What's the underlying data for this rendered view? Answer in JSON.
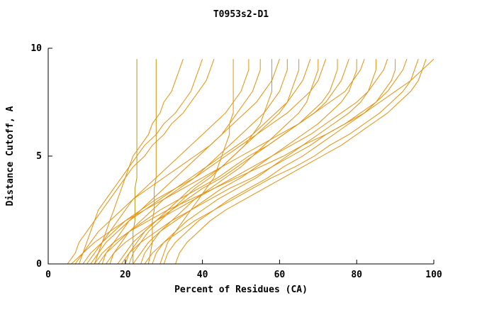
{
  "chart_data": {
    "type": "line",
    "title": "T0953s2-D1",
    "xlabel": "Percent of Residues (CA)",
    "ylabel": "Distance Cutoff, A",
    "xlim": [
      0,
      100
    ],
    "ylim": [
      0,
      10
    ],
    "xticks": [
      0,
      20,
      40,
      60,
      80,
      100
    ],
    "yticks": [
      0,
      5,
      10
    ],
    "grid": false,
    "legend_position": "none",
    "line_color_default": "#e8910c",
    "axis_color": "#000000",
    "background_color": "#ffffff",
    "y_grid": [
      0,
      0.5,
      1,
      1.5,
      2,
      2.5,
      3,
      3.5,
      4,
      4.5,
      5,
      5.5,
      6,
      6.5,
      7,
      7.5,
      8,
      8.5,
      9,
      9.5
    ],
    "series": [
      {
        "color": "#b09c10",
        "xs": [
          22,
          22,
          22,
          22,
          22.5,
          22.5,
          22.5,
          22.5,
          23,
          23,
          23,
          23,
          23,
          23,
          23,
          23,
          23,
          23,
          23,
          23
        ]
      },
      {
        "color": "#cf920a",
        "xs": [
          26,
          26.5,
          27,
          27,
          27,
          27.5,
          27.5,
          27.5,
          28,
          28,
          28,
          28,
          28,
          28,
          28,
          28,
          28,
          28,
          28,
          28
        ]
      },
      {
        "xs": [
          12,
          13,
          14,
          15,
          16,
          17,
          18,
          19,
          20,
          21,
          22,
          24,
          26,
          27,
          29,
          30,
          32,
          33,
          34,
          35
        ]
      },
      {
        "xs": [
          8,
          9,
          10,
          11,
          12,
          13,
          15,
          17,
          19,
          21,
          23,
          25,
          28,
          30,
          33,
          35,
          37,
          38,
          39,
          40
        ]
      },
      {
        "xs": [
          5,
          7,
          8,
          10,
          12,
          14,
          16,
          18,
          20,
          22,
          25,
          27,
          30,
          32,
          35,
          37,
          39,
          41,
          42,
          43
        ]
      },
      {
        "xs": [
          10,
          12,
          14,
          16,
          18,
          20,
          22,
          25,
          28,
          31,
          34,
          37,
          40,
          43,
          46,
          48,
          50,
          51,
          52,
          52
        ]
      },
      {
        "xs": [
          14,
          15,
          17,
          19,
          21,
          24,
          27,
          30,
          33,
          36,
          39,
          42,
          45,
          47,
          49,
          51,
          53,
          54,
          55,
          55
        ]
      },
      {
        "xs": [
          7,
          9,
          11,
          13,
          16,
          19,
          22,
          26,
          30,
          34,
          38,
          42,
          45,
          48,
          51,
          54,
          56,
          58,
          59,
          60
        ]
      },
      {
        "xs": [
          16,
          17,
          19,
          21,
          24,
          27,
          30,
          34,
          38,
          41,
          44,
          47,
          50,
          53,
          56,
          58,
          60,
          61,
          62,
          62
        ]
      },
      {
        "xs": [
          20,
          21,
          23,
          25,
          28,
          31,
          34,
          37,
          41,
          45,
          48,
          51,
          54,
          57,
          60,
          62,
          63,
          64,
          65,
          65
        ]
      },
      {
        "xs": [
          11,
          13,
          15,
          18,
          21,
          25,
          29,
          33,
          37,
          41,
          45,
          49,
          53,
          56,
          59,
          62,
          64,
          66,
          67,
          68
        ]
      },
      {
        "xs": [
          24,
          25,
          27,
          29,
          32,
          35,
          38,
          42,
          46,
          50,
          53,
          56,
          59,
          62,
          65,
          67,
          68,
          69,
          70,
          70
        ]
      },
      {
        "xs": [
          9,
          11,
          14,
          17,
          20,
          24,
          28,
          33,
          38,
          42,
          46,
          50,
          54,
          58,
          62,
          65,
          68,
          70,
          71,
          72
        ]
      },
      {
        "xs": [
          18,
          20,
          22,
          25,
          28,
          32,
          36,
          40,
          45,
          49,
          53,
          57,
          61,
          65,
          68,
          71,
          73,
          74,
          75,
          75
        ]
      },
      {
        "xs": [
          13,
          15,
          18,
          21,
          25,
          29,
          34,
          39,
          44,
          48,
          52,
          57,
          61,
          65,
          69,
          72,
          74,
          76,
          77,
          78
        ]
      },
      {
        "xs": [
          22,
          24,
          26,
          29,
          33,
          37,
          41,
          45,
          50,
          54,
          58,
          62,
          66,
          70,
          73,
          76,
          78,
          79,
          80,
          80
        ]
      },
      {
        "xs": [
          6,
          9,
          12,
          16,
          20,
          25,
          30,
          35,
          40,
          45,
          50,
          55,
          60,
          65,
          69,
          73,
          77,
          79,
          81,
          82
        ]
      },
      {
        "xs": [
          27,
          28,
          30,
          33,
          36,
          40,
          44,
          49,
          54,
          58,
          62,
          66,
          70,
          74,
          78,
          81,
          83,
          84,
          85,
          85
        ]
      },
      {
        "xs": [
          15,
          17,
          20,
          24,
          28,
          33,
          38,
          43,
          48,
          53,
          58,
          63,
          68,
          72,
          76,
          80,
          83,
          85,
          87,
          88
        ]
      },
      {
        "xs": [
          30,
          31,
          33,
          36,
          39,
          43,
          47,
          52,
          57,
          61,
          66,
          70,
          74,
          78,
          82,
          85,
          87,
          89,
          90,
          90
        ]
      },
      {
        "xs": [
          19,
          21,
          24,
          28,
          32,
          37,
          42,
          47,
          53,
          58,
          63,
          68,
          72,
          77,
          81,
          85,
          88,
          90,
          92,
          93
        ]
      },
      {
        "xs": [
          25,
          27,
          30,
          34,
          38,
          43,
          48,
          53,
          58,
          64,
          69,
          73,
          78,
          82,
          86,
          89,
          92,
          94,
          95,
          96
        ]
      },
      {
        "xs": [
          12,
          14,
          17,
          21,
          26,
          31,
          37,
          43,
          49,
          55,
          61,
          66,
          72,
          77,
          82,
          86,
          90,
          94,
          97,
          100
        ]
      },
      {
        "xs": [
          33,
          34,
          36,
          39,
          42,
          46,
          51,
          56,
          61,
          66,
          71,
          76,
          80,
          84,
          88,
          91,
          94,
          96,
          97,
          98
        ]
      },
      {
        "xs": [
          21,
          22,
          24,
          26,
          29,
          32,
          35,
          38,
          42,
          45,
          48,
          51,
          53,
          55,
          56,
          57,
          58,
          58,
          58,
          58
        ]
      },
      {
        "xs": [
          29,
          30,
          31,
          33,
          35,
          37,
          39,
          41,
          43,
          44,
          45,
          46,
          47,
          47,
          48,
          48,
          48,
          48,
          48,
          48
        ]
      }
    ]
  }
}
